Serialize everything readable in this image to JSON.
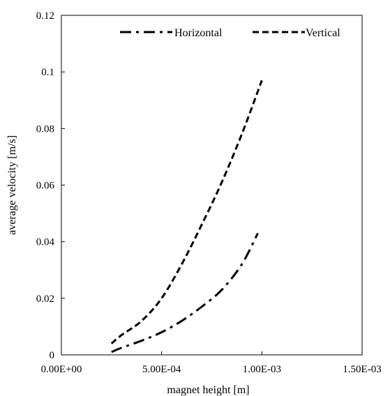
{
  "chart_data": {
    "type": "line",
    "title": "",
    "xlabel": "magnet height [m]",
    "ylabel": "average velocity [m/s]",
    "xlim": [
      0,
      0.0015
    ],
    "ylim": [
      0,
      0.12
    ],
    "xticks": [
      0,
      0.0005,
      0.001,
      0.0015
    ],
    "xtick_labels": [
      "0.00E+00",
      "5.00E-04",
      "1.00E-03",
      "1.50E-03"
    ],
    "yticks": [
      0,
      0.02,
      0.04,
      0.06,
      0.08,
      0.1,
      0.12
    ],
    "ytick_labels": [
      "0",
      "0.02",
      "0.04",
      "0.06",
      "0.08",
      "0.1",
      "0.12"
    ],
    "grid": false,
    "legend_position": "top",
    "series": [
      {
        "name": "Horizontal",
        "line_style": "dash-dot",
        "color": "#000000",
        "x": [
          0.00025,
          0.0003,
          0.0004,
          0.0005,
          0.0006,
          0.0007,
          0.0008,
          0.0009,
          0.00098
        ],
        "y": [
          0.001,
          0.0025,
          0.005,
          0.008,
          0.012,
          0.017,
          0.023,
          0.032,
          0.043
        ]
      },
      {
        "name": "Vertical",
        "line_style": "dashed",
        "color": "#000000",
        "x": [
          0.00025,
          0.0003,
          0.0004,
          0.0005,
          0.0006,
          0.0007,
          0.0008,
          0.0009,
          0.001
        ],
        "y": [
          0.004,
          0.007,
          0.012,
          0.02,
          0.032,
          0.046,
          0.061,
          0.078,
          0.097
        ]
      }
    ]
  }
}
